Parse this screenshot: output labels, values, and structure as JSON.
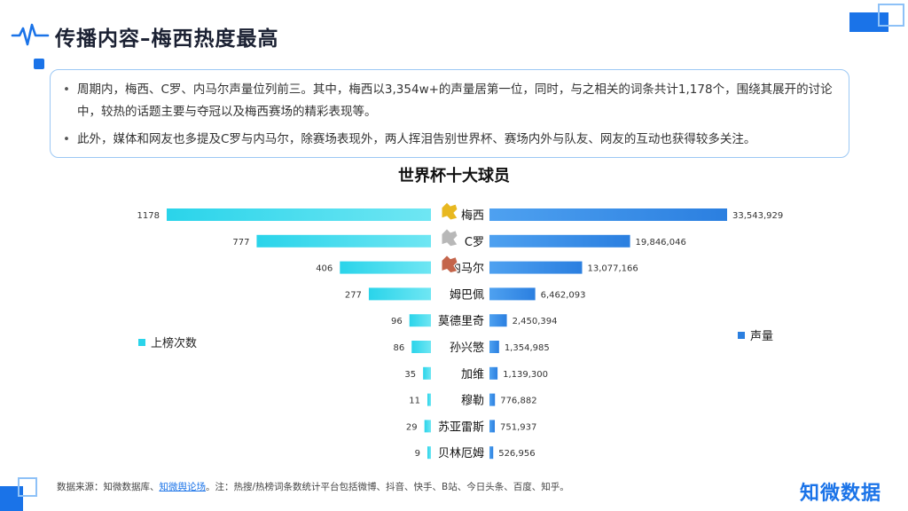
{
  "header": {
    "title": "传播内容–梅西热度最高"
  },
  "summary": {
    "bullets": [
      "周期内，梅西、C罗、内马尔声量位列前三。其中，梅西以3,354w+的声量居第一位，同时，与之相关的词条共计1,178个，围绕其展开的讨论中，较热的话题主要与夺冠以及梅西赛场的精彩表现等。",
      "此外，媒体和网友也多提及C罗与内马尔，除赛场表现外，两人挥泪告别世界杯、赛场内外与队友、网友的互动也获得较多关注。"
    ]
  },
  "chart_data": {
    "type": "bar",
    "title": "世界杯十大球员",
    "categories": [
      "梅西",
      "C罗",
      "内马尔",
      "姆巴佩",
      "莫德里奇",
      "孙兴慜",
      "加维",
      "穆勒",
      "苏亚雷斯",
      "贝林厄姆"
    ],
    "series": [
      {
        "name": "上榜次数",
        "side": "left",
        "color": "#2ad4ea",
        "values": [
          1178,
          777,
          406,
          277,
          96,
          86,
          35,
          11,
          29,
          9
        ],
        "labels": [
          "1178",
          "777",
          "406",
          "277",
          "96",
          "86",
          "35",
          "11",
          "29",
          "9"
        ]
      },
      {
        "name": "声量",
        "side": "right",
        "color": "#2b7fe0",
        "values": [
          33543929,
          19846046,
          13077166,
          6462093,
          2450394,
          1354985,
          1139300,
          776882,
          751937,
          526956
        ],
        "labels": [
          "33,543,929",
          "19,846,046",
          "13,077,166",
          "6,462,093",
          "2,450,394",
          "1,354,985",
          "1,139,300",
          "776,882",
          "751,937",
          "526,956"
        ]
      }
    ],
    "medal_colors": [
      "#e8b820",
      "#b8b8b8",
      "#c4654b"
    ],
    "legend": {
      "left_label": "上榜次数",
      "right_label": "声量"
    }
  },
  "footer": {
    "prefix": "数据来源：知微数据库、",
    "link": "知微舆论场",
    "suffix": "。注：热搜/热榜词条数统计平台包括微博、抖音、快手、B站、今日头条、百度、知乎。"
  },
  "brand": {
    "name": "知微数据"
  }
}
